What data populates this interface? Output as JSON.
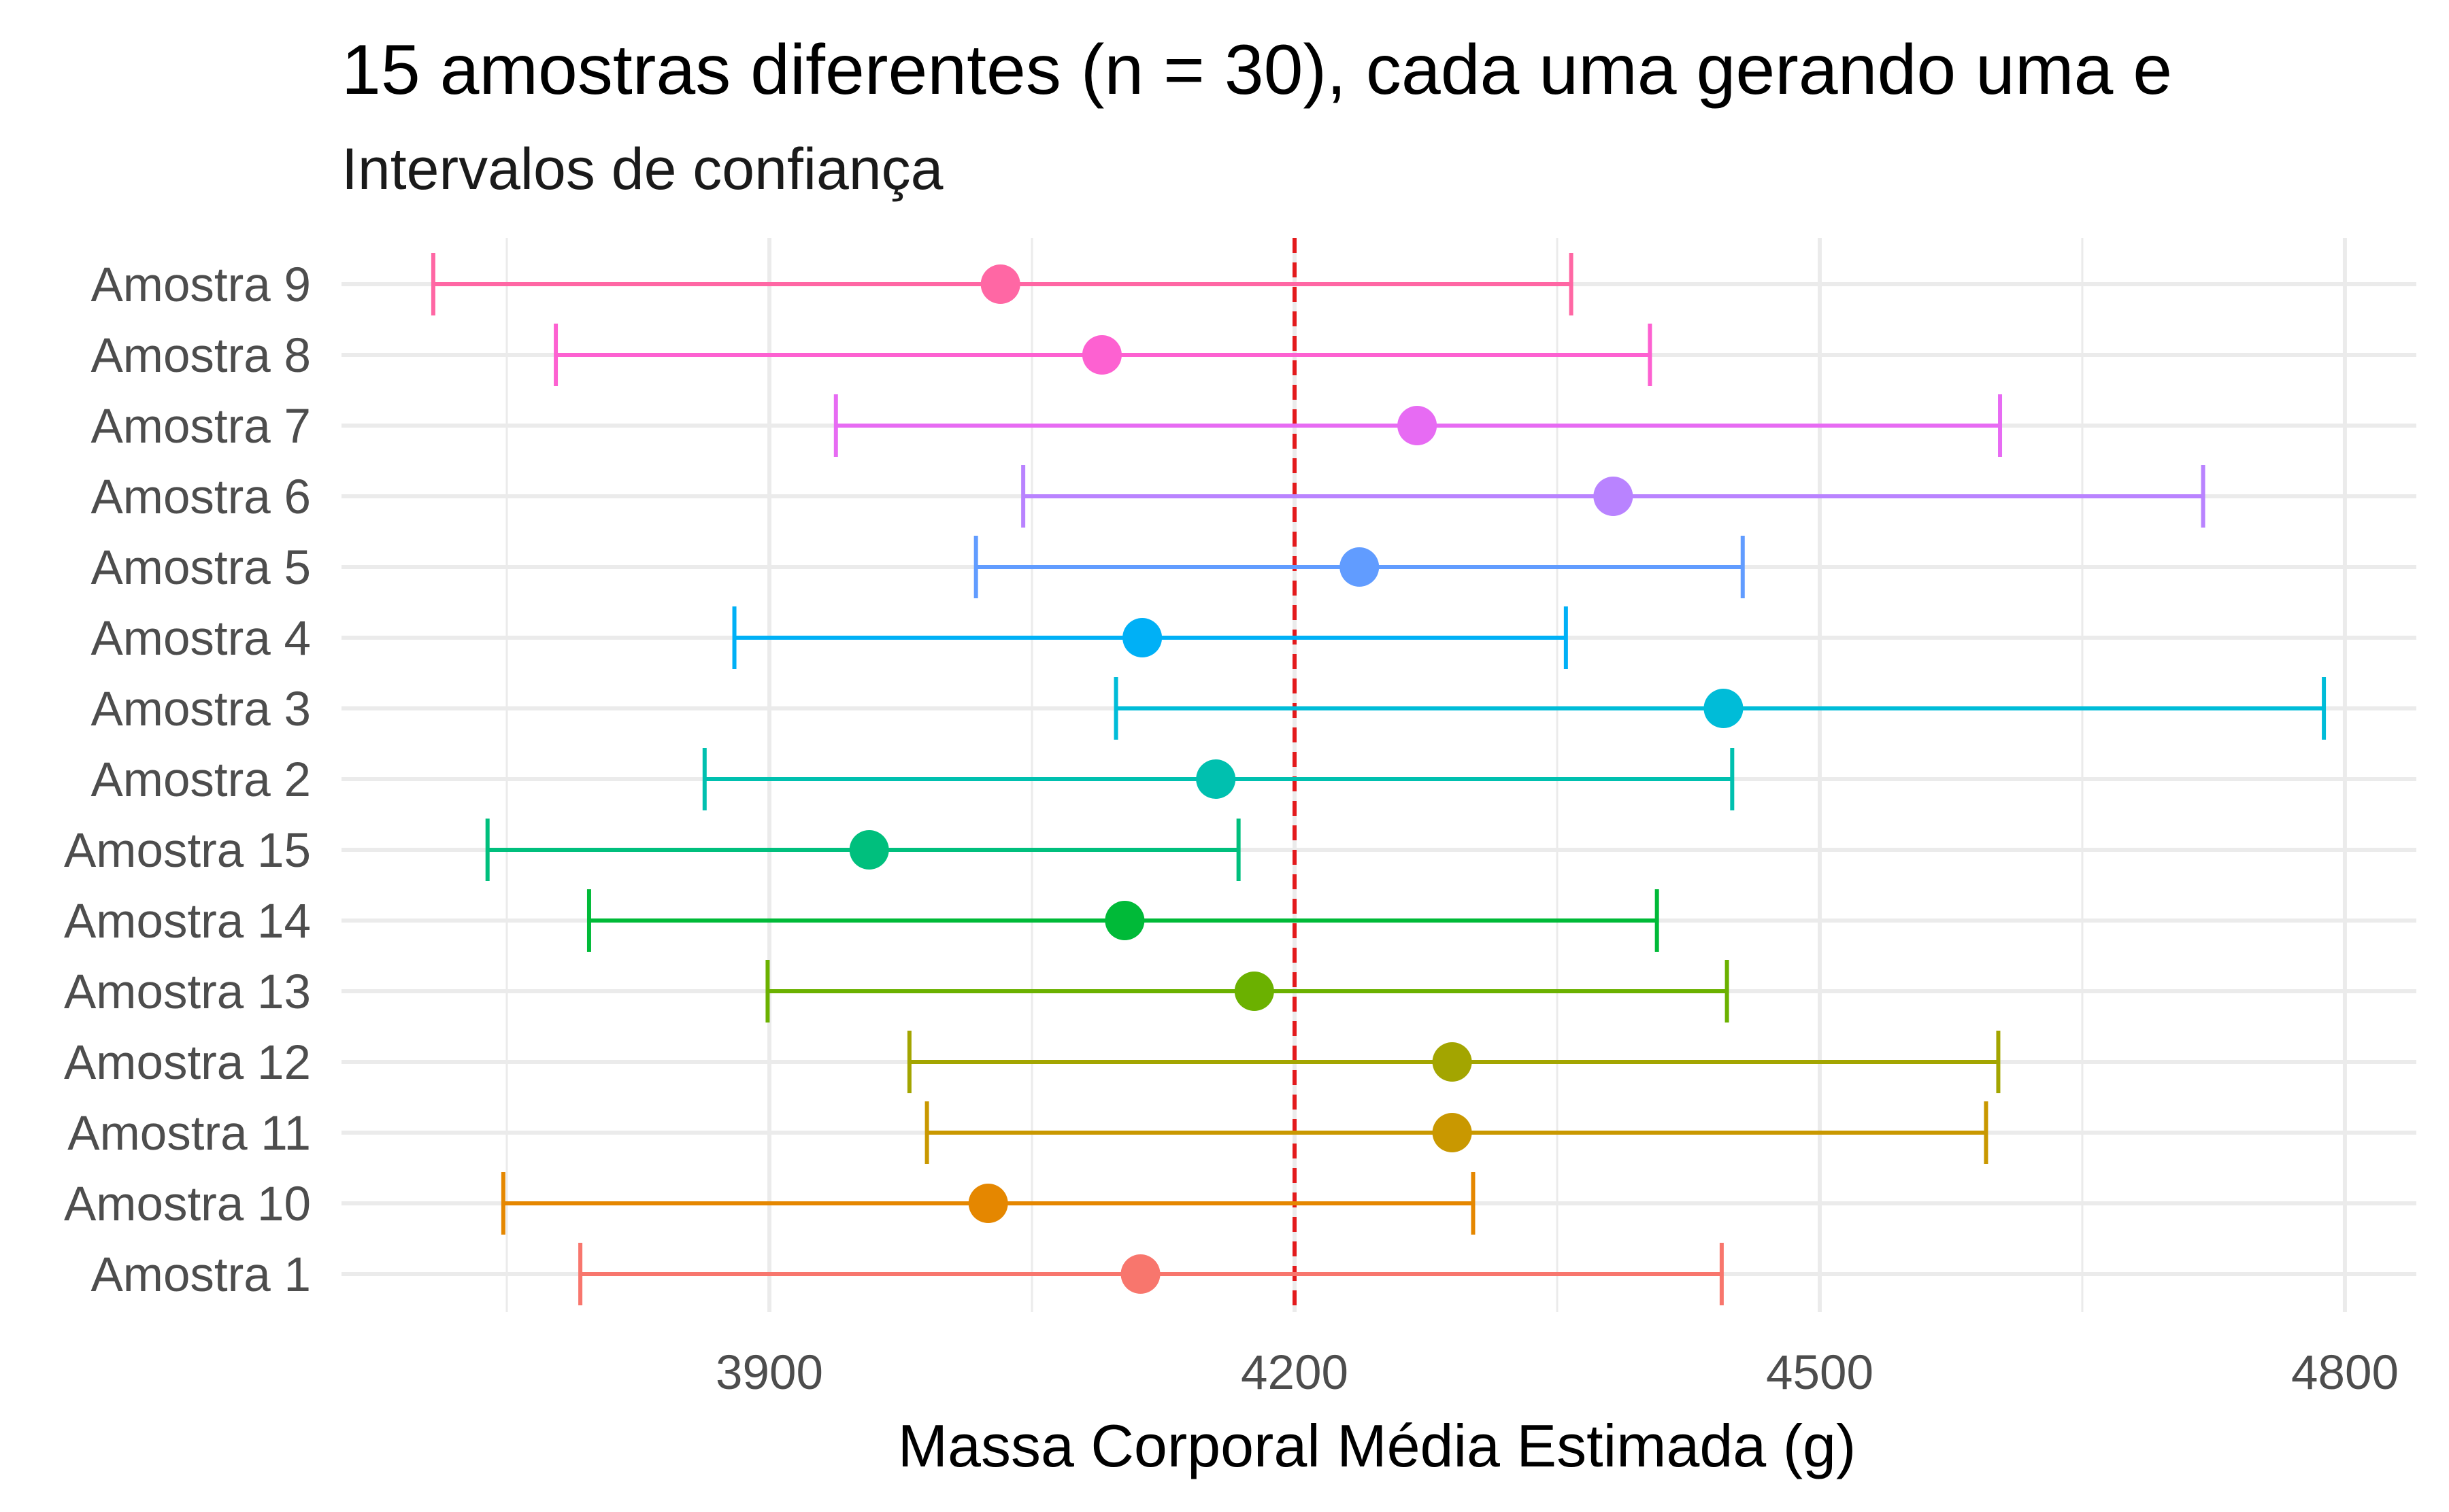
{
  "chart_data": {
    "type": "scatter",
    "subtype": "confidence-interval-errorbar",
    "title": "15 amostras diferentes (n = 30), cada uma gerando uma e",
    "subtitle": "Intervalos de confiança",
    "xlabel": "Massa Corporal Média Estimada (g)",
    "ylabel": "",
    "xlim": [
      3640,
      4830
    ],
    "x_ticks": [
      3900,
      4200,
      4500,
      4800
    ],
    "reference_line": {
      "x": 4200,
      "color": "#e31a1c",
      "style": "dashed"
    },
    "grid": true,
    "legend": "none",
    "categories": [
      "Amostra 1",
      "Amostra 10",
      "Amostra 11",
      "Amostra 12",
      "Amostra 13",
      "Amostra 14",
      "Amostra 15",
      "Amostra 2",
      "Amostra 3",
      "Amostra 4",
      "Amostra 5",
      "Amostra 6",
      "Amostra 7",
      "Amostra 8",
      "Amostra 9"
    ],
    "series": [
      {
        "label": "Amostra 1",
        "estimate": 4112,
        "lower": 3792,
        "upper": 4444,
        "color": "#F8766D"
      },
      {
        "label": "Amostra 10",
        "estimate": 4025,
        "lower": 3748,
        "upper": 4302,
        "color": "#E58700"
      },
      {
        "label": "Amostra 11",
        "estimate": 4290,
        "lower": 3990,
        "upper": 4595,
        "color": "#C99800"
      },
      {
        "label": "Amostra 12",
        "estimate": 4290,
        "lower": 3980,
        "upper": 4602,
        "color": "#A3A500"
      },
      {
        "label": "Amostra 13",
        "estimate": 4177,
        "lower": 3899,
        "upper": 4447,
        "color": "#6BB100"
      },
      {
        "label": "Amostra 14",
        "estimate": 4103,
        "lower": 3797,
        "upper": 4407,
        "color": "#00BA38"
      },
      {
        "label": "Amostra 15",
        "estimate": 3957,
        "lower": 3739,
        "upper": 4168,
        "color": "#00BF7D"
      },
      {
        "label": "Amostra 2",
        "estimate": 4155,
        "lower": 3863,
        "upper": 4450,
        "color": "#00C0AF"
      },
      {
        "label": "Amostra 3",
        "estimate": 4445,
        "lower": 4098,
        "upper": 4788,
        "color": "#00BCD8"
      },
      {
        "label": "Amostra 4",
        "estimate": 4113,
        "lower": 3880,
        "upper": 4355,
        "color": "#00B0F6"
      },
      {
        "label": "Amostra 5",
        "estimate": 4237,
        "lower": 4018,
        "upper": 4456,
        "color": "#619CFF"
      },
      {
        "label": "Amostra 6",
        "estimate": 4382,
        "lower": 4045,
        "upper": 4719,
        "color": "#B983FF"
      },
      {
        "label": "Amostra 7",
        "estimate": 4270,
        "lower": 3938,
        "upper": 4603,
        "color": "#E76BF3"
      },
      {
        "label": "Amostra 8",
        "estimate": 4090,
        "lower": 3778,
        "upper": 4403,
        "color": "#FD61D1"
      },
      {
        "label": "Amostra 9",
        "estimate": 4032,
        "lower": 3708,
        "upper": 4358,
        "color": "#FF67A4"
      }
    ]
  }
}
